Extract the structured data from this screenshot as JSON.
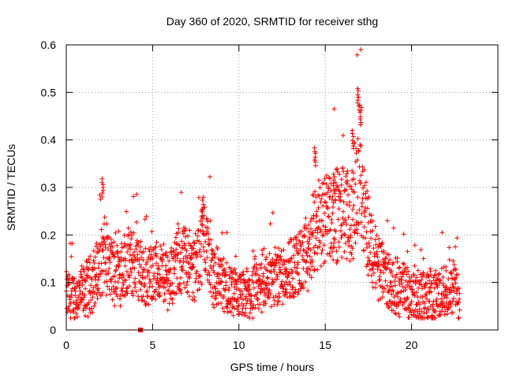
{
  "chart_data": {
    "type": "scatter",
    "title": "Day 360 of 2020, SRMTID for receiver sthg",
    "xlabel": "GPS time / hours",
    "ylabel": "SRMTID / TECUs",
    "xlim": [
      0,
      25
    ],
    "ylim": [
      0,
      0.6
    ],
    "xticks": [
      0,
      5,
      10,
      15,
      20
    ],
    "yticks": [
      0,
      0.1,
      0.2,
      0.3,
      0.4,
      0.5,
      0.6
    ],
    "ytick_labels": [
      "0",
      "0.1",
      "0.2",
      "0.3",
      "0.4",
      "0.5",
      "0.6"
    ],
    "grid": true,
    "marker": "plus",
    "color": "#ff0000",
    "series": [
      {
        "name": "SRMTID",
        "sampling": "approximate trend read from the plot, hours vs TECU",
        "x": [
          0.0,
          0.5,
          1.0,
          1.5,
          2.0,
          2.2,
          2.5,
          3.0,
          3.5,
          4.0,
          4.5,
          5.0,
          5.5,
          6.0,
          6.5,
          7.0,
          7.5,
          7.8,
          8.0,
          8.5,
          9.0,
          9.5,
          10.0,
          10.5,
          11.0,
          11.5,
          12.0,
          12.5,
          13.0,
          13.5,
          14.0,
          14.3,
          14.6,
          15.0,
          15.5,
          16.0,
          16.5,
          16.8,
          17.0,
          17.3,
          17.6,
          18.0,
          18.5,
          19.0,
          19.5,
          20.0,
          20.5,
          21.0,
          21.5,
          22.0,
          22.5,
          22.8
        ],
        "y": [
          0.07,
          0.07,
          0.08,
          0.1,
          0.14,
          0.16,
          0.13,
          0.12,
          0.14,
          0.14,
          0.11,
          0.12,
          0.12,
          0.11,
          0.14,
          0.15,
          0.12,
          0.18,
          0.2,
          0.12,
          0.1,
          0.08,
          0.07,
          0.07,
          0.08,
          0.1,
          0.11,
          0.12,
          0.13,
          0.14,
          0.15,
          0.2,
          0.22,
          0.24,
          0.24,
          0.25,
          0.23,
          0.3,
          0.35,
          0.25,
          0.18,
          0.14,
          0.11,
          0.09,
          0.09,
          0.08,
          0.07,
          0.07,
          0.07,
          0.09,
          0.09,
          0.06
        ]
      }
    ],
    "peaks": [
      {
        "x": 2.1,
        "y": 0.32
      },
      {
        "x": 7.9,
        "y": 0.28
      },
      {
        "x": 14.4,
        "y": 0.385
      },
      {
        "x": 15.5,
        "y": 0.33
      },
      {
        "x": 16.6,
        "y": 0.42
      },
      {
        "x": 16.9,
        "y": 0.51
      },
      {
        "x": 17.05,
        "y": 0.47
      }
    ],
    "outlier": {
      "x": 4.3,
      "y": 0.0,
      "marker": "square"
    }
  }
}
